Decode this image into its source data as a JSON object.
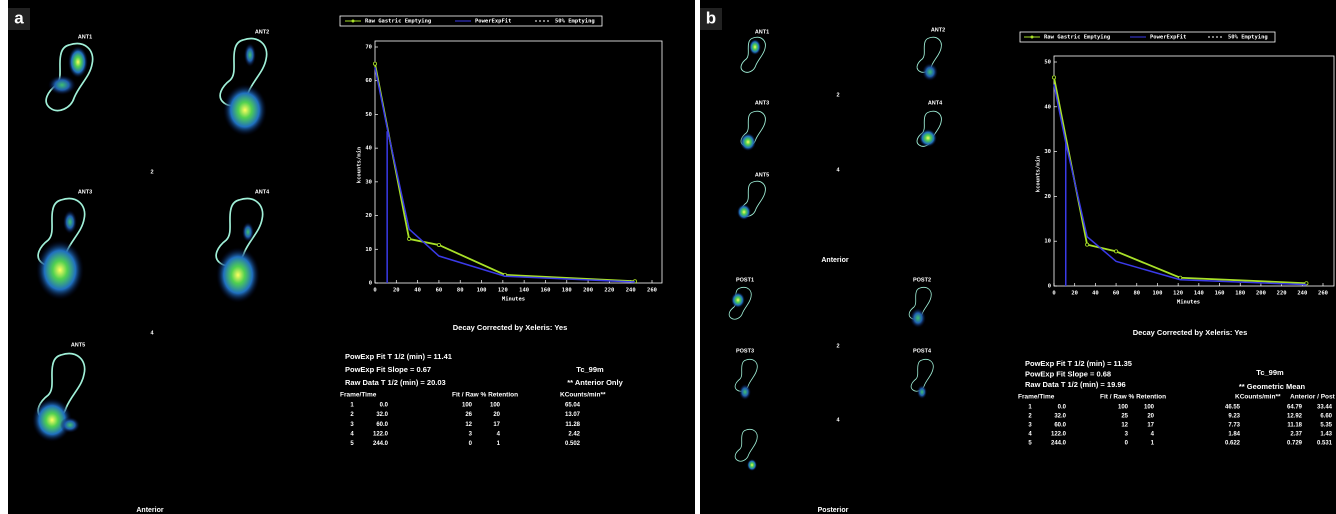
{
  "chart_data": [
    {
      "type": "line",
      "x_label": "Minutes",
      "y_label": "kcounts/min",
      "xlim": [
        0,
        260
      ],
      "xticks": [
        0,
        20,
        40,
        60,
        80,
        100,
        120,
        140,
        160,
        180,
        200,
        220,
        240,
        260
      ],
      "ylim": [
        0,
        70
      ],
      "yticks": [
        0,
        10,
        20,
        30,
        40,
        50,
        60,
        70
      ],
      "series": [
        {
          "name": "Raw Gastric Emptying",
          "color": "#a8e028",
          "markers": true,
          "x": [
            0,
            32,
            60,
            122,
            244
          ],
          "values": [
            65.04,
            13.07,
            11.28,
            2.42,
            0.502
          ]
        },
        {
          "name": "PowerExpFit",
          "color": "#3a3ae8",
          "x": [
            0,
            11.41,
            32,
            60,
            122,
            244
          ],
          "values": [
            64,
            46,
            16,
            8,
            2,
            0.3
          ]
        },
        {
          "name": "50% Emptying",
          "color": "#3a3ae8",
          "dashed": true,
          "x": [
            11.41,
            11.41
          ],
          "values": [
            0,
            45
          ]
        }
      ]
    },
    {
      "type": "line",
      "x_label": "Minutes",
      "y_label": "kcounts/min",
      "xlim": [
        0,
        260
      ],
      "xticks": [
        0,
        20,
        40,
        60,
        80,
        100,
        120,
        140,
        160,
        180,
        200,
        220,
        240,
        260
      ],
      "ylim": [
        0,
        50
      ],
      "yticks": [
        0,
        10,
        20,
        30,
        40,
        50
      ],
      "series": [
        {
          "name": "Raw Gastric Emptying",
          "color": "#a8e028",
          "markers": true,
          "x": [
            0,
            32,
            60,
            122,
            244
          ],
          "values": [
            46.55,
            9.23,
            7.73,
            1.84,
            0.622
          ]
        },
        {
          "name": "PowerExpFit",
          "color": "#3a3ae8",
          "x": [
            0,
            11.35,
            32,
            60,
            122,
            244
          ],
          "values": [
            45,
            32,
            11,
            5.5,
            1.4,
            0.3
          ]
        },
        {
          "name": "50% Emptying",
          "color": "#3a3ae8",
          "dashed": true,
          "x": [
            11.35,
            11.35
          ],
          "values": [
            0,
            32
          ]
        }
      ]
    }
  ],
  "panels": [
    {
      "label": "a",
      "image_labels": [
        "ANT1",
        "ANT2",
        "2",
        "ANT3",
        "ANT4",
        "4",
        "ANT5",
        "Anterior"
      ],
      "decay": "Decay Corrected by Xeleris: Yes",
      "stats": [
        "PowExp Fit T 1/2 (min) = 11.41",
        "PowExp Fit Slope = 0.67",
        "Raw Data T 1/2 (min) = 20.03"
      ],
      "isotope": "Tc_99m",
      "mode": "** Anterior Only",
      "mode_color": "#e040e0",
      "table": {
        "header": [
          "Frame/Time",
          "Fit / Raw % Retention",
          "KCounts/min**"
        ],
        "rows": [
          [
            "1",
            "0.0",
            "100",
            "100",
            "65.04"
          ],
          [
            "2",
            "32.0",
            "26",
            "20",
            "13.07"
          ],
          [
            "3",
            "60.0",
            "12",
            "17",
            "11.28"
          ],
          [
            "4",
            "122.0",
            "3",
            "4",
            "2.42"
          ],
          [
            "5",
            "244.0",
            "0",
            "1",
            "0.502"
          ]
        ]
      }
    },
    {
      "label": "b",
      "image_labels": [
        "ANT1",
        "ANT2",
        "2",
        "ANT3",
        "ANT4",
        "4",
        "ANT5",
        "Anterior",
        "POST1",
        "POST2",
        "2",
        "POST3",
        "POST4",
        "4",
        "Posterior"
      ],
      "decay": "Decay Corrected by Xeleris: Yes",
      "stats": [
        "PowExp Fit T 1/2 (min) = 11.35",
        "PowExp Fit Slope = 0.68",
        "Raw Data T 1/2 (min) = 19.96"
      ],
      "isotope": "Tc_99m",
      "mode": "** Geometric Mean",
      "mode_color": "#40e040",
      "table": {
        "header": [
          "Frame/Time",
          "Fit / Raw % Retention",
          "KCounts/min**",
          "Anterior / Post"
        ],
        "rows": [
          [
            "1",
            "0.0",
            "100",
            "100",
            "46.55",
            "64.79",
            "33.44"
          ],
          [
            "2",
            "32.0",
            "25",
            "20",
            "9.23",
            "12.92",
            "6.60"
          ],
          [
            "3",
            "60.0",
            "12",
            "17",
            "7.73",
            "11.18",
            "5.35"
          ],
          [
            "4",
            "122.0",
            "3",
            "4",
            "1.84",
            "2.37",
            "1.43"
          ],
          [
            "5",
            "244.0",
            "0",
            "1",
            "0.622",
            "0.729",
            "0.531"
          ]
        ]
      }
    }
  ]
}
